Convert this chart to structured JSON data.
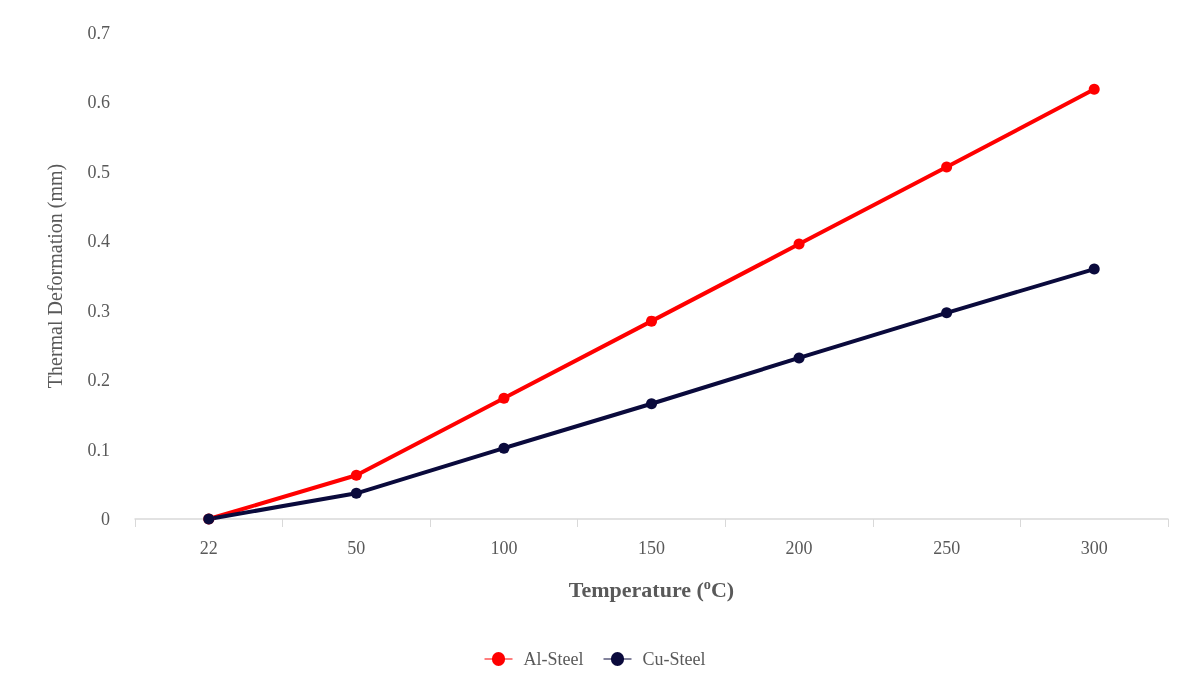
{
  "chart_data": {
    "type": "line",
    "xlabel": "Temperature ($^{o}$C)",
    "ylabel": "Thermal Deformation (mm)",
    "categories": [
      "22",
      "50",
      "100",
      "150",
      "200",
      "250",
      "300"
    ],
    "series": [
      {
        "name": "Al-Steel",
        "color": "#ff0000",
        "values": [
          0,
          0.063,
          0.174,
          0.285,
          0.396,
          0.507,
          0.619
        ]
      },
      {
        "name": "Cu-Steel",
        "color": "#0a0a3c",
        "values": [
          0,
          0.037,
          0.102,
          0.166,
          0.232,
          0.297,
          0.36
        ]
      }
    ],
    "ylim": [
      0,
      0.7
    ],
    "yticks": [
      0,
      0.1,
      0.2,
      0.3,
      0.4,
      0.5,
      0.6,
      0.7
    ],
    "grid": false,
    "legend": "bottom",
    "marker": "circle",
    "line_style": "solid"
  }
}
